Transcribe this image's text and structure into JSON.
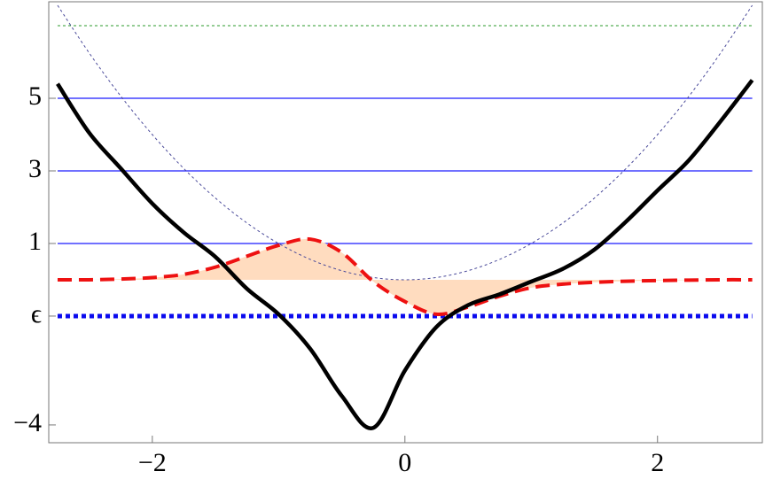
{
  "chart_data": {
    "type": "line",
    "xlim": [
      -2.82,
      2.83
    ],
    "ylim": [
      -4.49,
      7.66
    ],
    "xticks": [
      {
        "value": -2,
        "label": "−2"
      },
      0,
      2
    ],
    "yticks": [
      {
        "value": -4,
        "label": "−4"
      },
      {
        "value": -1,
        "label": "ϵ"
      },
      1,
      3,
      5
    ],
    "x": [
      -2.75,
      -2.5,
      -2.25,
      -2.0,
      -1.75,
      -1.5,
      -1.25,
      -1.0,
      -0.75,
      -0.5,
      -0.25,
      0,
      0.25,
      0.5,
      0.75,
      1.0,
      1.25,
      1.5,
      1.75,
      2.0,
      2.25,
      2.5,
      2.75
    ],
    "reference_lines": [
      {
        "value": 7,
        "color": "#2a9a2a",
        "style": "dotted"
      },
      {
        "value": 5,
        "color": "#1a1aff",
        "style": "solid"
      },
      {
        "value": 3,
        "color": "#1a1aff",
        "style": "solid"
      },
      {
        "value": 1,
        "color": "#1a1aff",
        "style": "solid"
      },
      {
        "value": -1,
        "color": "#0a0aee",
        "style": "thick-dotted"
      }
    ],
    "series": [
      {
        "color": "#4a4a9a",
        "style": "dotted",
        "values": [
          7.5625,
          6.25,
          5.0625,
          4,
          3.0625,
          2.25,
          1.5625,
          1,
          0.5625,
          0.25,
          0.0625,
          0,
          0.0625,
          0.25,
          0.5625,
          1,
          1.5625,
          2.25,
          3.0625,
          4,
          5.0625,
          6.25,
          7.5625
        ]
      },
      {
        "color": "#ee1111",
        "style": "dashed",
        "fill": "#ffdcbf",
        "values": [
          0,
          0,
          0.02,
          0.06,
          0.15,
          0.35,
          0.65,
          0.95,
          1.12,
          0.75,
          -0.05,
          -0.6,
          -0.95,
          -0.75,
          -0.45,
          -0.22,
          -0.12,
          -0.07,
          -0.04,
          -0.02,
          -0.01,
          0,
          0
        ]
      },
      {
        "color": "#000000",
        "style": "solid",
        "values": [
          5.4,
          4.05,
          3.07,
          2.1,
          1.3,
          0.63,
          -0.25,
          -0.95,
          -1.9,
          -3.2,
          -4.08,
          -2.5,
          -1.3,
          -0.7,
          -0.4,
          -0.05,
          0.3,
          0.83,
          1.6,
          2.46,
          3.3,
          4.37,
          5.5
        ]
      }
    ]
  }
}
